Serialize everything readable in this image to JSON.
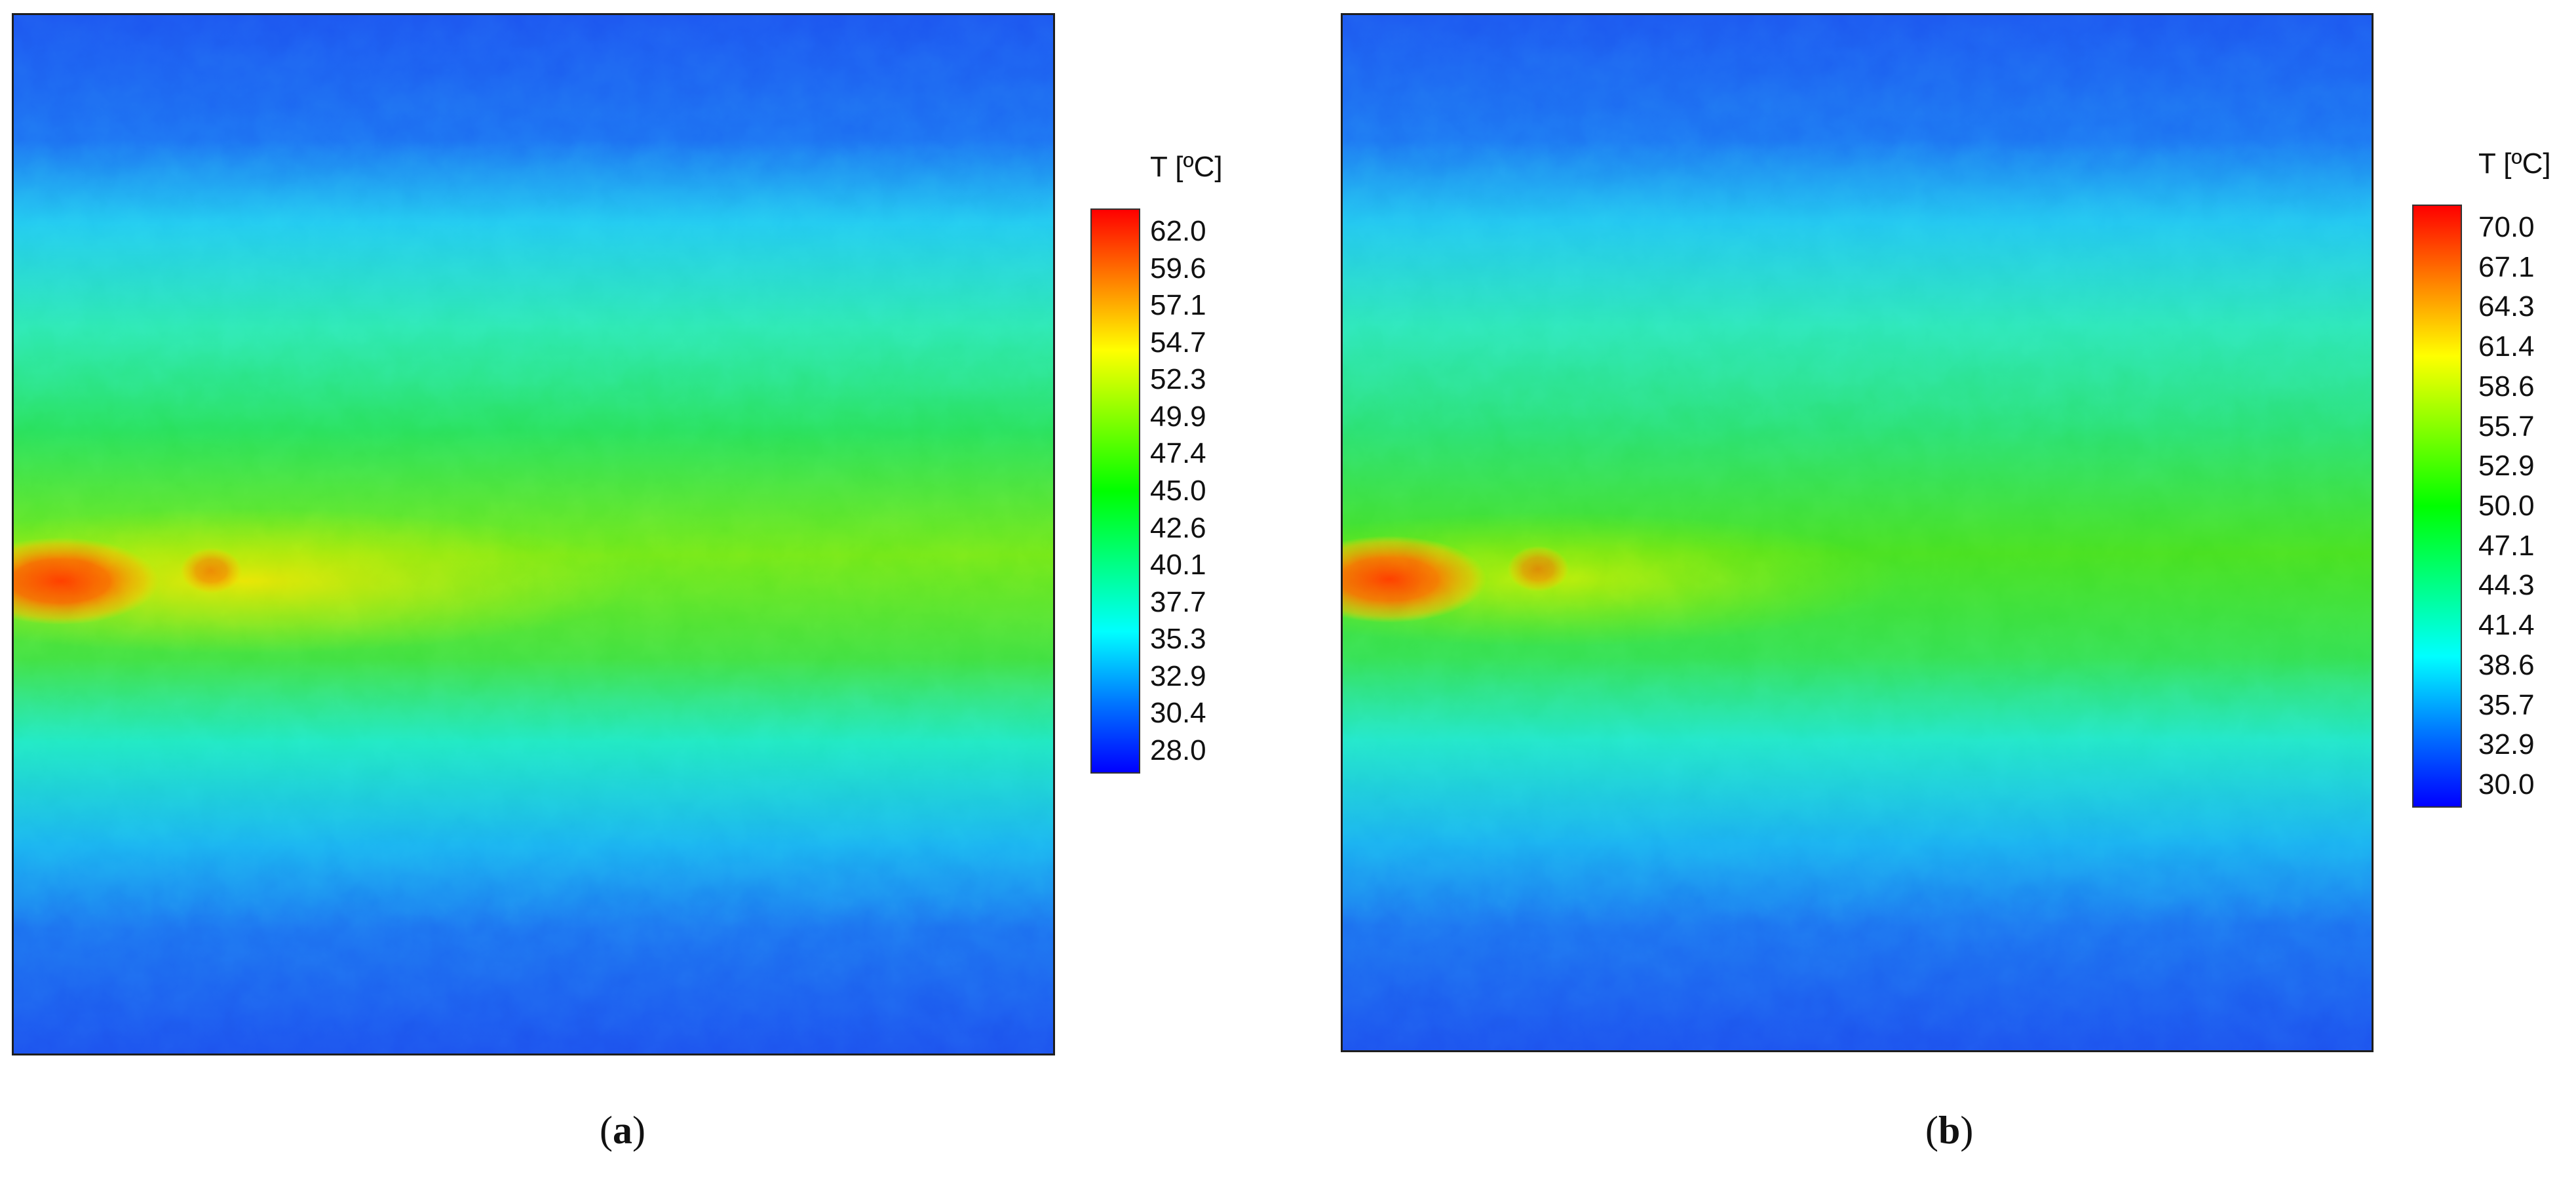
{
  "chart_data": [
    {
      "type": "heatmap",
      "panel_label": "a",
      "colorbar": {
        "title": "T [ºC]",
        "ticks": [
          "62.0",
          "59.6",
          "57.1",
          "54.7",
          "52.3",
          "49.9",
          "47.4",
          "45.0",
          "42.6",
          "40.1",
          "37.7",
          "35.3",
          "32.9",
          "30.4",
          "28.0"
        ],
        "min": 28.0,
        "max": 62.0,
        "colormap": [
          "#0000ff",
          "#0078ff",
          "#00ffff",
          "#00ff80",
          "#00ff00",
          "#80ff00",
          "#ffff00",
          "#ff8000",
          "#ff0000"
        ]
      },
      "field": {
        "background_value": 32,
        "band_center_value": 46,
        "hot_spot_value": 61
      }
    },
    {
      "type": "heatmap",
      "panel_label": "b",
      "colorbar": {
        "title": "T [ºC]",
        "ticks": [
          "70.0",
          "67.1",
          "64.3",
          "61.4",
          "58.6",
          "55.7",
          "52.9",
          "50.0",
          "47.1",
          "44.3",
          "41.4",
          "38.6",
          "35.7",
          "32.9",
          "30.0"
        ],
        "min": 30.0,
        "max": 70.0,
        "colormap": [
          "#0000ff",
          "#0078ff",
          "#00ffff",
          "#00ff80",
          "#00ff00",
          "#80ff00",
          "#ffff00",
          "#ff8000",
          "#ff0000"
        ]
      },
      "field": {
        "background_value": 34,
        "band_center_value": 50,
        "hot_spot_value": 69
      }
    }
  ]
}
